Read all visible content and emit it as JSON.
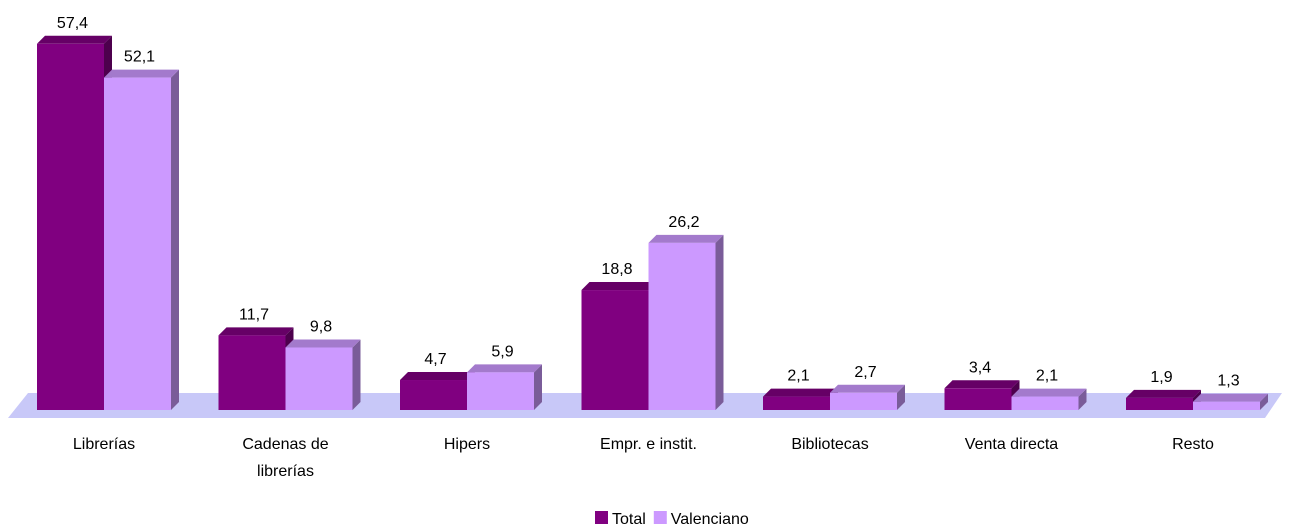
{
  "chart_data": {
    "type": "bar3d",
    "categories": [
      "Librerías",
      "Cadenas de librerías",
      "Hipers",
      "Empr. e instit.",
      "Bibliotecas",
      "Venta directa",
      "Resto"
    ],
    "series": [
      {
        "name": "Total",
        "color": "#800080",
        "values": [
          57.4,
          11.7,
          4.7,
          18.8,
          2.1,
          3.4,
          1.9
        ],
        "value_labels": [
          "57,4",
          "11,7",
          "4,7",
          "18,8",
          "2,1",
          "3,4",
          "1,9"
        ]
      },
      {
        "name": "Valenciano",
        "color": "#cc99ff",
        "values": [
          52.1,
          9.8,
          5.9,
          26.2,
          2.7,
          2.1,
          1.3
        ],
        "value_labels": [
          "52,1",
          "9,8",
          "5,9",
          "26,2",
          "2,7",
          "2,1",
          "1,3"
        ]
      }
    ],
    "legend": "bottom"
  }
}
